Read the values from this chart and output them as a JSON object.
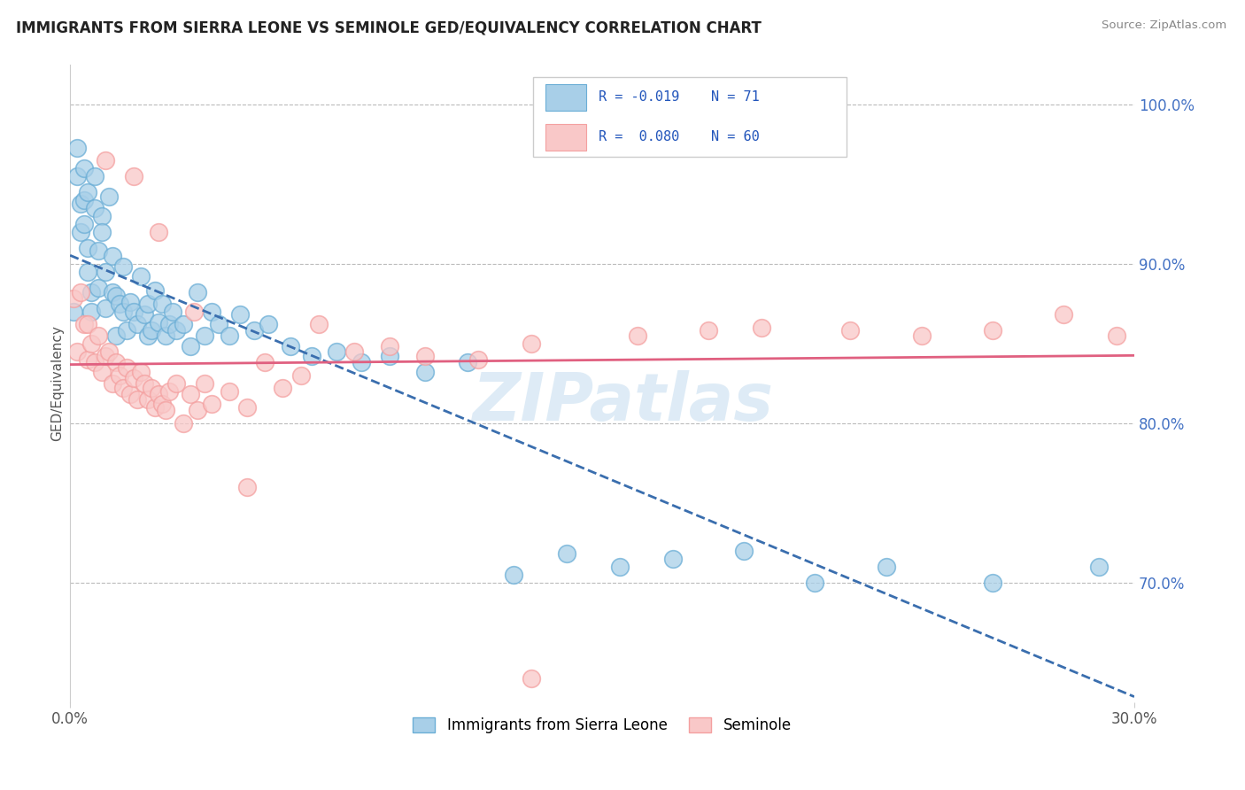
{
  "title": "IMMIGRANTS FROM SIERRA LEONE VS SEMINOLE GED/EQUIVALENCY CORRELATION CHART",
  "source_text": "Source: ZipAtlas.com",
  "ylabel": "GED/Equivalency",
  "xmin": 0.0,
  "xmax": 0.3,
  "ymin": 0.625,
  "ymax": 1.025,
  "yticks": [
    0.7,
    0.8,
    0.9,
    1.0
  ],
  "ytick_labels": [
    "70.0%",
    "80.0%",
    "90.0%",
    "100.0%"
  ],
  "blue_color": "#6baed6",
  "blue_fill": "#a8cfe8",
  "pink_color": "#f4a0a0",
  "pink_fill": "#f9c8c8",
  "blue_line_color": "#3a6eae",
  "pink_line_color": "#e06080",
  "R_blue": -0.019,
  "N_blue": 71,
  "R_pink": 0.08,
  "N_pink": 60,
  "legend_label_blue": "Immigrants from Sierra Leone",
  "legend_label_pink": "Seminole",
  "watermark": "ZIPatlas",
  "grid_color": "#bbbbbb",
  "blue_x": [
    0.001,
    0.002,
    0.002,
    0.003,
    0.003,
    0.004,
    0.004,
    0.004,
    0.005,
    0.005,
    0.005,
    0.006,
    0.006,
    0.007,
    0.007,
    0.008,
    0.008,
    0.009,
    0.009,
    0.01,
    0.01,
    0.011,
    0.012,
    0.012,
    0.013,
    0.013,
    0.014,
    0.015,
    0.015,
    0.016,
    0.017,
    0.018,
    0.019,
    0.02,
    0.021,
    0.022,
    0.022,
    0.023,
    0.024,
    0.025,
    0.026,
    0.027,
    0.028,
    0.029,
    0.03,
    0.032,
    0.034,
    0.036,
    0.038,
    0.04,
    0.042,
    0.045,
    0.048,
    0.052,
    0.056,
    0.062,
    0.068,
    0.075,
    0.082,
    0.09,
    0.1,
    0.112,
    0.125,
    0.14,
    0.155,
    0.17,
    0.19,
    0.21,
    0.23,
    0.26,
    0.29
  ],
  "blue_y": [
    0.87,
    0.955,
    0.973,
    0.938,
    0.92,
    0.96,
    0.94,
    0.925,
    0.945,
    0.91,
    0.895,
    0.882,
    0.87,
    0.955,
    0.935,
    0.908,
    0.885,
    0.93,
    0.92,
    0.895,
    0.872,
    0.942,
    0.905,
    0.882,
    0.88,
    0.855,
    0.875,
    0.898,
    0.87,
    0.858,
    0.876,
    0.87,
    0.862,
    0.892,
    0.868,
    0.875,
    0.855,
    0.858,
    0.883,
    0.863,
    0.875,
    0.855,
    0.862,
    0.87,
    0.858,
    0.862,
    0.848,
    0.882,
    0.855,
    0.87,
    0.862,
    0.855,
    0.868,
    0.858,
    0.862,
    0.848,
    0.842,
    0.845,
    0.838,
    0.842,
    0.832,
    0.838,
    0.705,
    0.718,
    0.71,
    0.715,
    0.72,
    0.7,
    0.71,
    0.7,
    0.71
  ],
  "pink_x": [
    0.001,
    0.002,
    0.003,
    0.004,
    0.005,
    0.005,
    0.006,
    0.007,
    0.008,
    0.009,
    0.01,
    0.011,
    0.012,
    0.013,
    0.014,
    0.015,
    0.016,
    0.017,
    0.018,
    0.019,
    0.02,
    0.021,
    0.022,
    0.023,
    0.024,
    0.025,
    0.026,
    0.027,
    0.028,
    0.03,
    0.032,
    0.034,
    0.036,
    0.038,
    0.04,
    0.045,
    0.05,
    0.055,
    0.06,
    0.065,
    0.07,
    0.08,
    0.09,
    0.1,
    0.115,
    0.13,
    0.16,
    0.18,
    0.195,
    0.22,
    0.24,
    0.26,
    0.28,
    0.295,
    0.01,
    0.018,
    0.025,
    0.035,
    0.05,
    0.13
  ],
  "pink_y": [
    0.878,
    0.845,
    0.882,
    0.862,
    0.862,
    0.84,
    0.85,
    0.838,
    0.855,
    0.832,
    0.842,
    0.845,
    0.825,
    0.838,
    0.83,
    0.822,
    0.835,
    0.818,
    0.828,
    0.815,
    0.832,
    0.825,
    0.815,
    0.822,
    0.81,
    0.818,
    0.812,
    0.808,
    0.82,
    0.825,
    0.8,
    0.818,
    0.808,
    0.825,
    0.812,
    0.82,
    0.81,
    0.838,
    0.822,
    0.83,
    0.862,
    0.845,
    0.848,
    0.842,
    0.84,
    0.85,
    0.855,
    0.858,
    0.86,
    0.858,
    0.855,
    0.858,
    0.868,
    0.855,
    0.965,
    0.955,
    0.92,
    0.87,
    0.76,
    0.64
  ]
}
